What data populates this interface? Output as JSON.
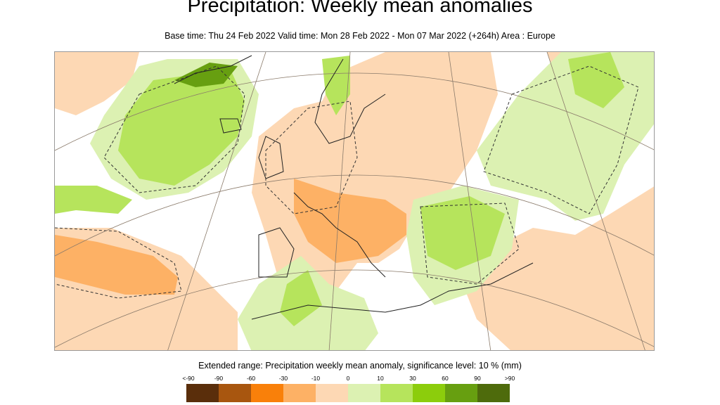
{
  "header": {
    "title": "Precipitation: Weekly mean anomalies",
    "subtitle": "Base time: Thu 24 Feb 2022 Valid time: Mon 28 Feb 2022 - Mon 07 Mar 2022 (+264h) Area : Europe"
  },
  "map": {
    "area": "Europe",
    "projection": "polar stereographic",
    "significance_contour": "dashed"
  },
  "legend": {
    "title": "Extended range: Precipitation weekly mean anomaly, significance level: 10 % (mm)",
    "labels": [
      "<-90",
      "-90",
      "-60",
      "-30",
      "-10",
      "0",
      "10",
      "30",
      "60",
      "90",
      ">90"
    ],
    "colors": [
      "#5a2e0b",
      "#a8560f",
      "#f9800a",
      "#fdb165",
      "#fdd8b4",
      "#dcf1b2",
      "#b6e45c",
      "#8ccd0c",
      "#679f10",
      "#4e6b0c"
    ]
  }
}
